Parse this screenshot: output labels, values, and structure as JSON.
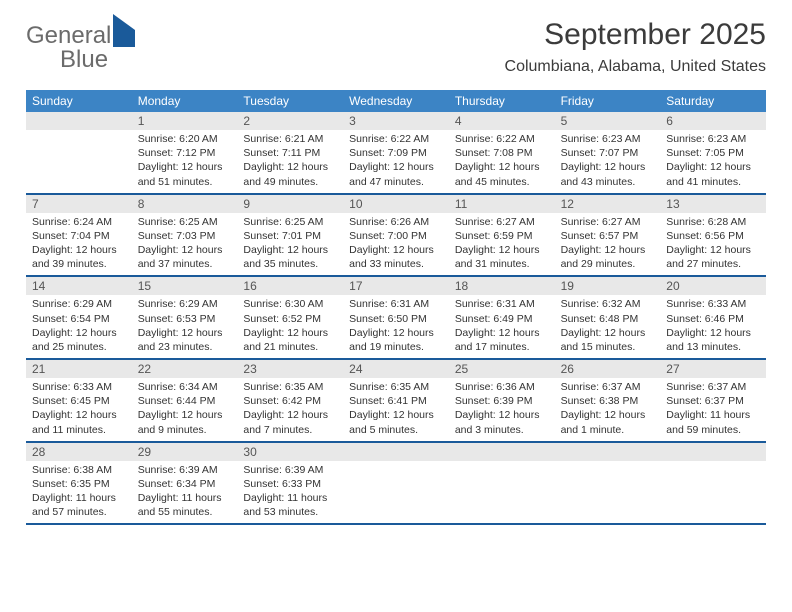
{
  "logo": {
    "word1": "General",
    "word2": "Blue"
  },
  "title": "September 2025",
  "location": "Columbiana, Alabama, United States",
  "weekdays": [
    "Sunday",
    "Monday",
    "Tuesday",
    "Wednesday",
    "Thursday",
    "Friday",
    "Saturday"
  ],
  "colors": {
    "header_bg": "#3c84c5",
    "header_text": "#ffffff",
    "week_border": "#1a5a9a",
    "daynum_bg": "#e8e8e8",
    "logo_gray": "#6b6b6b",
    "logo_blue": "#3c84c5",
    "title_color": "#3b3b3b"
  },
  "typography": {
    "title_fontsize": 30,
    "subtitle_fontsize": 16,
    "weekday_fontsize": 12,
    "daynum_fontsize": 12,
    "body_fontsize": 10.5
  },
  "layout": {
    "columns": 7,
    "rows": 5,
    "leading_blanks": 1
  },
  "days": [
    {
      "n": "1",
      "sunrise": "Sunrise: 6:20 AM",
      "sunset": "Sunset: 7:12 PM",
      "daylight": "Daylight: 12 hours and 51 minutes."
    },
    {
      "n": "2",
      "sunrise": "Sunrise: 6:21 AM",
      "sunset": "Sunset: 7:11 PM",
      "daylight": "Daylight: 12 hours and 49 minutes."
    },
    {
      "n": "3",
      "sunrise": "Sunrise: 6:22 AM",
      "sunset": "Sunset: 7:09 PM",
      "daylight": "Daylight: 12 hours and 47 minutes."
    },
    {
      "n": "4",
      "sunrise": "Sunrise: 6:22 AM",
      "sunset": "Sunset: 7:08 PM",
      "daylight": "Daylight: 12 hours and 45 minutes."
    },
    {
      "n": "5",
      "sunrise": "Sunrise: 6:23 AM",
      "sunset": "Sunset: 7:07 PM",
      "daylight": "Daylight: 12 hours and 43 minutes."
    },
    {
      "n": "6",
      "sunrise": "Sunrise: 6:23 AM",
      "sunset": "Sunset: 7:05 PM",
      "daylight": "Daylight: 12 hours and 41 minutes."
    },
    {
      "n": "7",
      "sunrise": "Sunrise: 6:24 AM",
      "sunset": "Sunset: 7:04 PM",
      "daylight": "Daylight: 12 hours and 39 minutes."
    },
    {
      "n": "8",
      "sunrise": "Sunrise: 6:25 AM",
      "sunset": "Sunset: 7:03 PM",
      "daylight": "Daylight: 12 hours and 37 minutes."
    },
    {
      "n": "9",
      "sunrise": "Sunrise: 6:25 AM",
      "sunset": "Sunset: 7:01 PM",
      "daylight": "Daylight: 12 hours and 35 minutes."
    },
    {
      "n": "10",
      "sunrise": "Sunrise: 6:26 AM",
      "sunset": "Sunset: 7:00 PM",
      "daylight": "Daylight: 12 hours and 33 minutes."
    },
    {
      "n": "11",
      "sunrise": "Sunrise: 6:27 AM",
      "sunset": "Sunset: 6:59 PM",
      "daylight": "Daylight: 12 hours and 31 minutes."
    },
    {
      "n": "12",
      "sunrise": "Sunrise: 6:27 AM",
      "sunset": "Sunset: 6:57 PM",
      "daylight": "Daylight: 12 hours and 29 minutes."
    },
    {
      "n": "13",
      "sunrise": "Sunrise: 6:28 AM",
      "sunset": "Sunset: 6:56 PM",
      "daylight": "Daylight: 12 hours and 27 minutes."
    },
    {
      "n": "14",
      "sunrise": "Sunrise: 6:29 AM",
      "sunset": "Sunset: 6:54 PM",
      "daylight": "Daylight: 12 hours and 25 minutes."
    },
    {
      "n": "15",
      "sunrise": "Sunrise: 6:29 AM",
      "sunset": "Sunset: 6:53 PM",
      "daylight": "Daylight: 12 hours and 23 minutes."
    },
    {
      "n": "16",
      "sunrise": "Sunrise: 6:30 AM",
      "sunset": "Sunset: 6:52 PM",
      "daylight": "Daylight: 12 hours and 21 minutes."
    },
    {
      "n": "17",
      "sunrise": "Sunrise: 6:31 AM",
      "sunset": "Sunset: 6:50 PM",
      "daylight": "Daylight: 12 hours and 19 minutes."
    },
    {
      "n": "18",
      "sunrise": "Sunrise: 6:31 AM",
      "sunset": "Sunset: 6:49 PM",
      "daylight": "Daylight: 12 hours and 17 minutes."
    },
    {
      "n": "19",
      "sunrise": "Sunrise: 6:32 AM",
      "sunset": "Sunset: 6:48 PM",
      "daylight": "Daylight: 12 hours and 15 minutes."
    },
    {
      "n": "20",
      "sunrise": "Sunrise: 6:33 AM",
      "sunset": "Sunset: 6:46 PM",
      "daylight": "Daylight: 12 hours and 13 minutes."
    },
    {
      "n": "21",
      "sunrise": "Sunrise: 6:33 AM",
      "sunset": "Sunset: 6:45 PM",
      "daylight": "Daylight: 12 hours and 11 minutes."
    },
    {
      "n": "22",
      "sunrise": "Sunrise: 6:34 AM",
      "sunset": "Sunset: 6:44 PM",
      "daylight": "Daylight: 12 hours and 9 minutes."
    },
    {
      "n": "23",
      "sunrise": "Sunrise: 6:35 AM",
      "sunset": "Sunset: 6:42 PM",
      "daylight": "Daylight: 12 hours and 7 minutes."
    },
    {
      "n": "24",
      "sunrise": "Sunrise: 6:35 AM",
      "sunset": "Sunset: 6:41 PM",
      "daylight": "Daylight: 12 hours and 5 minutes."
    },
    {
      "n": "25",
      "sunrise": "Sunrise: 6:36 AM",
      "sunset": "Sunset: 6:39 PM",
      "daylight": "Daylight: 12 hours and 3 minutes."
    },
    {
      "n": "26",
      "sunrise": "Sunrise: 6:37 AM",
      "sunset": "Sunset: 6:38 PM",
      "daylight": "Daylight: 12 hours and 1 minute."
    },
    {
      "n": "27",
      "sunrise": "Sunrise: 6:37 AM",
      "sunset": "Sunset: 6:37 PM",
      "daylight": "Daylight: 11 hours and 59 minutes."
    },
    {
      "n": "28",
      "sunrise": "Sunrise: 6:38 AM",
      "sunset": "Sunset: 6:35 PM",
      "daylight": "Daylight: 11 hours and 57 minutes."
    },
    {
      "n": "29",
      "sunrise": "Sunrise: 6:39 AM",
      "sunset": "Sunset: 6:34 PM",
      "daylight": "Daylight: 11 hours and 55 minutes."
    },
    {
      "n": "30",
      "sunrise": "Sunrise: 6:39 AM",
      "sunset": "Sunset: 6:33 PM",
      "daylight": "Daylight: 11 hours and 53 minutes."
    }
  ]
}
